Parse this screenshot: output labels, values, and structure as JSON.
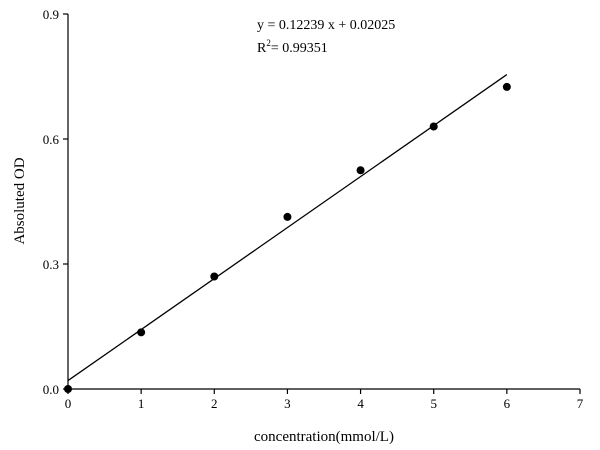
{
  "chart_data": {
    "type": "scatter",
    "xlabel": "concentration(mmol/L)",
    "ylabel": "Absoluted OD",
    "xlim": [
      0,
      7
    ],
    "ylim": [
      0,
      0.9
    ],
    "x_ticks": [
      0,
      1,
      2,
      3,
      4,
      5,
      6,
      7
    ],
    "y_ticks": [
      0.0,
      0.3,
      0.6,
      0.9
    ],
    "x_tick_labels": [
      "0",
      "1",
      "2",
      "3",
      "4",
      "5",
      "6",
      "7"
    ],
    "y_tick_labels": [
      "0.0",
      "0.3",
      "0.6",
      "0.9"
    ],
    "grid": false,
    "series": [
      {
        "x": [
          0,
          1,
          2,
          3,
          4,
          5,
          6
        ],
        "y": [
          0.0,
          0.136,
          0.27,
          0.413,
          0.525,
          0.63,
          0.725
        ],
        "marker": "circle",
        "color": "#000000"
      }
    ],
    "fit_line": {
      "slope": 0.12239,
      "intercept": 0.02025,
      "x_range": [
        0,
        6
      ],
      "color": "#000000"
    },
    "annotations": {
      "equation": "y = 0.12239 x + 0.02025",
      "r2_label": "R",
      "r2_exponent": "2",
      "r2_value": "= 0.99351"
    }
  }
}
